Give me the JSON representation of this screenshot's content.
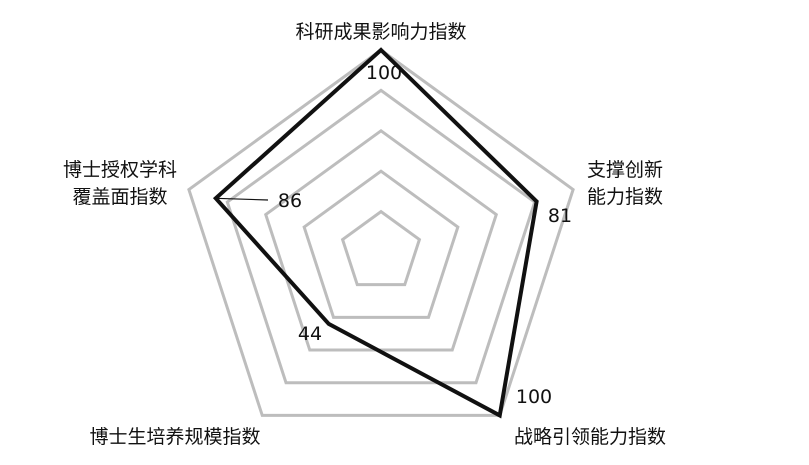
{
  "chart_data": {
    "type": "radar",
    "axes": [
      "科研成果影响力指数",
      "支撑创新能力指数",
      "战略引领能力指数",
      "博士生培养规模指数",
      "博士授权学科覆盖面指数"
    ],
    "axis_label_lines": [
      [
        "科研成果影响力指数"
      ],
      [
        "支撑创新",
        "能力指数"
      ],
      [
        "战略引领能力指数"
      ],
      [
        "博士生培养规模指数"
      ],
      [
        "博士授权学科",
        "覆盖面指数"
      ]
    ],
    "values": [
      100,
      81,
      100,
      44,
      86
    ],
    "value_labels": [
      "100",
      "81",
      "100",
      "44",
      "86"
    ],
    "range": [
      0,
      100
    ],
    "rings": 5,
    "grid": true,
    "colors": {
      "grid": "#bdbdbd",
      "series": "#111111"
    }
  }
}
